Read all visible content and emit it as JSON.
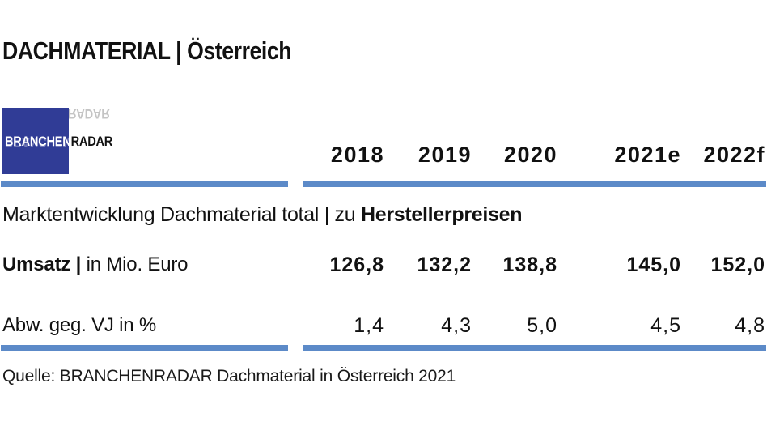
{
  "page": {
    "title": "DACHMATERIAL | Österreich",
    "source": "Quelle: BRANCHENRADAR Dachmaterial in Österreich 2021"
  },
  "logo": {
    "part1": "BRANCHEN",
    "part2": "RADAR"
  },
  "table": {
    "years": [
      "2018",
      "2019",
      "2020",
      "2021e",
      "2022f"
    ],
    "section_regular": "Marktentwicklung Dachmaterial total | zu ",
    "section_bold": "Herstellerpreisen",
    "rows": [
      {
        "label_bold": "Umsatz |",
        "label_rest": " in Mio. Euro",
        "values": [
          "126,8",
          "132,2",
          "138,8",
          "145,0",
          "152,0"
        ]
      },
      {
        "label_bold": "",
        "label_rest": "Abw. geg. VJ in %",
        "values": [
          "1,4",
          "4,3",
          "5,0",
          "4,5",
          "4,8"
        ]
      }
    ]
  },
  "colors": {
    "logo_blue": "#303c96",
    "divider_blue": "#5c8ac8",
    "text": "#111111"
  },
  "chart_data": {
    "type": "table",
    "title": "DACHMATERIAL | Österreich",
    "subtitle": "Marktentwicklung Dachmaterial total | zu Herstellerpreisen",
    "categories": [
      "2018",
      "2019",
      "2020",
      "2021e",
      "2022f"
    ],
    "series": [
      {
        "name": "Umsatz | in Mio. Euro",
        "values": [
          126.8,
          132.2,
          138.8,
          145.0,
          152.0
        ]
      },
      {
        "name": "Abw. geg. VJ in %",
        "values": [
          1.4,
          4.3,
          5.0,
          4.5,
          4.8
        ]
      }
    ],
    "source": "Quelle: BRANCHENRADAR Dachmaterial in Österreich 2021"
  }
}
